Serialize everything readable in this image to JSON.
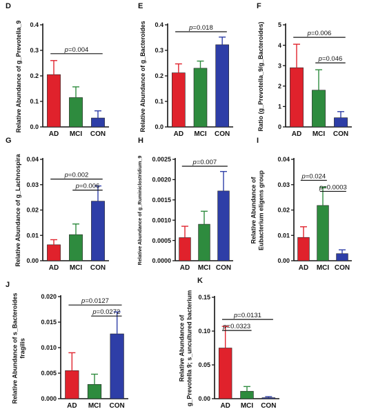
{
  "colors": {
    "AD": "#e0222c",
    "MCI": "#2e8b3e",
    "CON": "#2e3ea7",
    "axis": "#111111"
  },
  "chart_data": [
    {
      "panel": "D",
      "type": "bar",
      "ylabel": "Relative Abundance of g_Prevotella_9",
      "categories": [
        "AD",
        "MCI",
        "CON"
      ],
      "values": [
        0.205,
        0.115,
        0.035
      ],
      "errors": [
        0.055,
        0.042,
        0.028
      ],
      "ylim": [
        0,
        0.4
      ],
      "yticks": [
        "0.0",
        "0.1",
        "0.2",
        "0.3",
        "0.4"
      ],
      "comparisons": [
        {
          "from": "AD",
          "to": "CON",
          "p": "0.004"
        }
      ]
    },
    {
      "panel": "E",
      "type": "bar",
      "ylabel": "Relative Abundance of g_Bacteroides",
      "categories": [
        "AD",
        "MCI",
        "CON"
      ],
      "values": [
        0.212,
        0.23,
        0.322
      ],
      "errors": [
        0.035,
        0.028,
        0.03
      ],
      "ylim": [
        0,
        0.4
      ],
      "yticks": [
        "0.0",
        "0.1",
        "0.2",
        "0.3",
        "0.4"
      ],
      "comparisons": [
        {
          "from": "AD",
          "to": "CON",
          "p": "0.018"
        }
      ]
    },
    {
      "panel": "F",
      "type": "bar",
      "ylabel": "Ratio (g_Prevotella_9/g_Bacteroides)",
      "categories": [
        "AD",
        "MCI",
        "CON"
      ],
      "values": [
        2.9,
        1.8,
        0.45
      ],
      "errors": [
        1.15,
        1.0,
        0.3
      ],
      "ylim": [
        0,
        5
      ],
      "yticks": [
        "0",
        "1",
        "2",
        "3",
        "4",
        "5"
      ],
      "comparisons": [
        {
          "from": "AD",
          "to": "CON",
          "p": "0.006"
        },
        {
          "from": "MCI",
          "to": "CON",
          "p": "0.046"
        }
      ]
    },
    {
      "panel": "G",
      "type": "bar",
      "ylabel": "Relative Abundance of g_Lachnospira",
      "categories": [
        "AD",
        "MCI",
        "CON"
      ],
      "values": [
        0.0063,
        0.0103,
        0.0235
      ],
      "errors": [
        0.002,
        0.0042,
        0.006
      ],
      "ylim": [
        0,
        0.04
      ],
      "yticks": [
        "0.00",
        "0.01",
        "0.02",
        "0.03",
        "0.04"
      ],
      "comparisons": [
        {
          "from": "AD",
          "to": "CON",
          "p": "0.002"
        },
        {
          "from": "MCI",
          "to": "CON",
          "p": "0.006"
        }
      ]
    },
    {
      "panel": "H",
      "type": "bar",
      "ylabel": "Relative Abundance of g_Ruminiclostridium_9",
      "categories": [
        "AD",
        "MCI",
        "CON"
      ],
      "values": [
        0.00057,
        0.0009,
        0.00172
      ],
      "errors": [
        0.00028,
        0.00032,
        0.00048
      ],
      "ylim": [
        0,
        0.0025
      ],
      "yticks": [
        "0.0000",
        "0.0005",
        "0.0010",
        "0.0015",
        "0.0020",
        "0.0025"
      ],
      "comparisons": [
        {
          "from": "AD",
          "to": "CON",
          "p": "0.007"
        }
      ]
    },
    {
      "panel": "I",
      "type": "bar",
      "ylabel_lines": [
        "Relative Abundance of",
        "Eubacterium eligens group"
      ],
      "categories": [
        "AD",
        "MCI",
        "CON"
      ],
      "values": [
        0.0092,
        0.0218,
        0.0028
      ],
      "errors": [
        0.0042,
        0.0072,
        0.0015
      ],
      "ylim": [
        0,
        0.04
      ],
      "yticks": [
        "0.00",
        "0.01",
        "0.02",
        "0.03",
        "0.04"
      ],
      "comparisons": [
        {
          "from": "AD",
          "to": "MCI",
          "p": "0.024"
        },
        {
          "from": "MCI",
          "to": "CON",
          "p": "0.0003"
        }
      ]
    },
    {
      "panel": "J",
      "type": "bar",
      "ylabel_lines": [
        "Relative Abundance of s_Bacteroides",
        "fragilis"
      ],
      "categories": [
        "AD",
        "MCI",
        "CON"
      ],
      "values": [
        0.0055,
        0.0028,
        0.0127
      ],
      "errors": [
        0.0035,
        0.002,
        0.0043
      ],
      "ylim": [
        0,
        0.02
      ],
      "yticks": [
        "0.000",
        "0.005",
        "0.010",
        "0.015",
        "0.020"
      ],
      "comparisons": [
        {
          "from": "AD",
          "to": "CON",
          "p": "0.0127"
        },
        {
          "from": "MCI",
          "to": "CON",
          "p": "0.0272"
        }
      ]
    },
    {
      "panel": "K",
      "type": "bar",
      "ylabel_lines": [
        "Relative Abundance of",
        "g_Prevotella 9; s_uncultured bacterium"
      ],
      "categories": [
        "AD",
        "MCI",
        "CON"
      ],
      "values": [
        0.075,
        0.011,
        0.0015
      ],
      "errors": [
        0.032,
        0.007,
        0.0015
      ],
      "ylim": [
        0,
        0.15
      ],
      "yticks": [
        "0.00",
        "0.05",
        "0.10",
        "0.15"
      ],
      "comparisons": [
        {
          "from": "AD",
          "to": "CON",
          "p": "0.0131"
        },
        {
          "from": "AD",
          "to": "MCI",
          "p": "0.0323"
        }
      ]
    }
  ]
}
